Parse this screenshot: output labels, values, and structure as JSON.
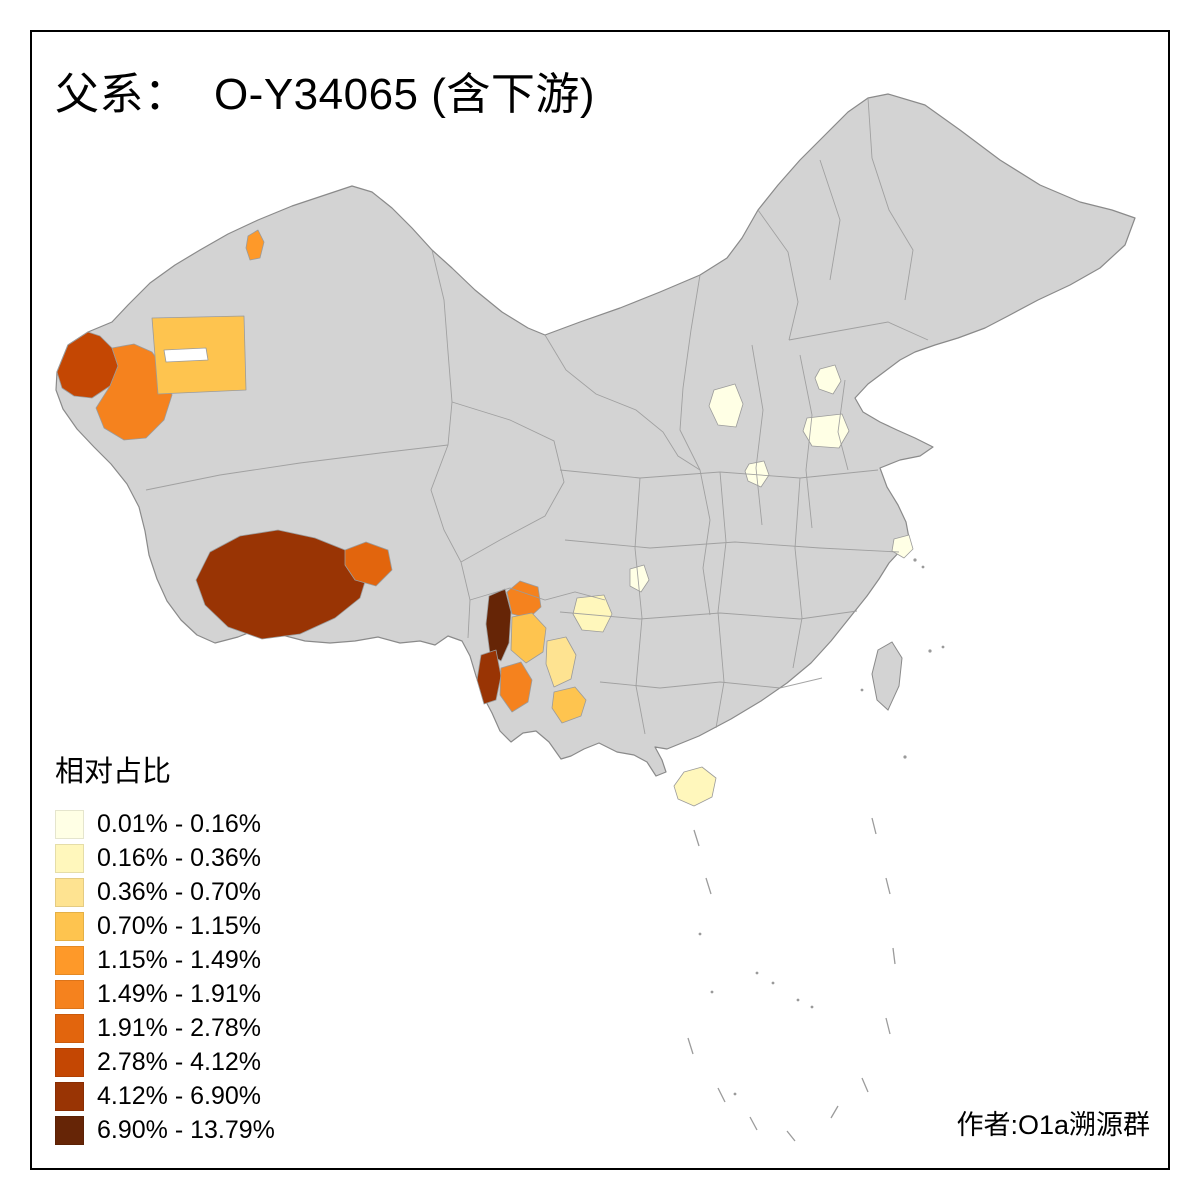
{
  "title": "父系：  O-Y34065 (含下游)",
  "attribution": "作者:O1a溯源群",
  "legend": {
    "title": "相对占比",
    "items": [
      {
        "label": "0.01% - 0.16%",
        "color": "#FFFFE5"
      },
      {
        "label": "0.16% - 0.36%",
        "color": "#FFF7BC"
      },
      {
        "label": "0.36% - 0.70%",
        "color": "#FEE391"
      },
      {
        "label": "0.70% - 1.15%",
        "color": "#FEC44F"
      },
      {
        "label": "1.15% - 1.49%",
        "color": "#FE9929"
      },
      {
        "label": "1.49% - 1.91%",
        "color": "#F5821E"
      },
      {
        "label": "1.91% - 2.78%",
        "color": "#E2650D"
      },
      {
        "label": "2.78% - 4.12%",
        "color": "#C44703"
      },
      {
        "label": "4.12% - 6.90%",
        "color": "#993404"
      },
      {
        "label": "6.90% - 13.79%",
        "color": "#662506"
      }
    ]
  },
  "map": {
    "base_color": "#D3D3D3",
    "boundary_color": "#9B9B9B",
    "outline_color": "#8A8A8A",
    "water_color": "#FFFFFF"
  }
}
